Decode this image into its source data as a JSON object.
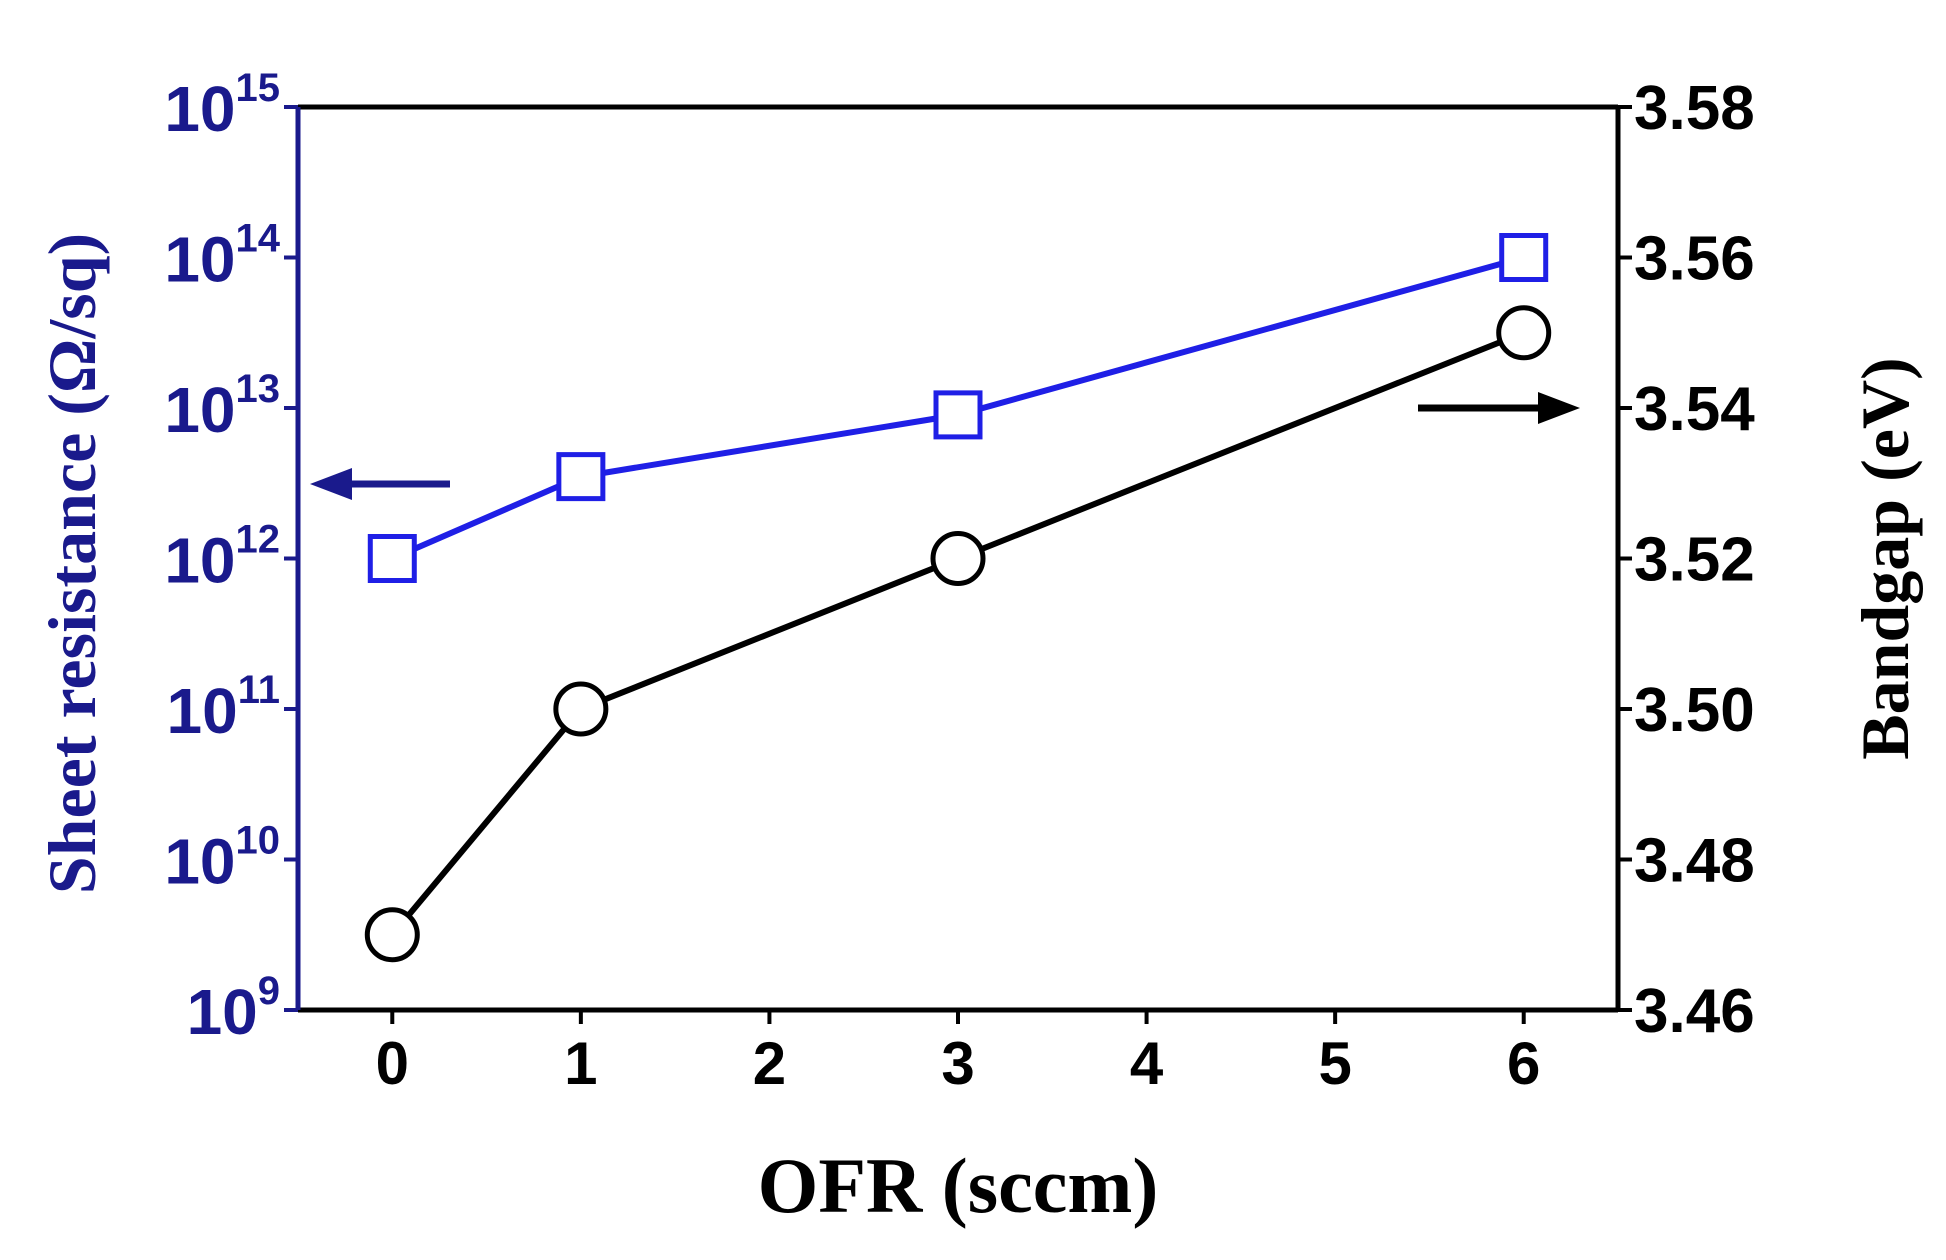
{
  "chart_data": {
    "type": "line",
    "xlabel": "OFR (sccm)",
    "x_ticks": [
      "0",
      "1",
      "2",
      "3",
      "4",
      "5",
      "6"
    ],
    "xlim": [
      -0.5,
      6.5
    ],
    "y_left": {
      "label": "Sheet resistance (Ω/sq)",
      "scale": "log",
      "ylim": [
        1000000000.0,
        1000000000000000.0
      ],
      "tick_base": "10",
      "tick_exponents": [
        "9",
        "10",
        "11",
        "12",
        "13",
        "14",
        "15"
      ],
      "color": "#1a1a8c"
    },
    "y_right": {
      "label": "Bandgap  (eV)",
      "ylim": [
        3.46,
        3.58
      ],
      "tick_labels": [
        "3.46",
        "3.48",
        "3.50",
        "3.52",
        "3.54",
        "3.56",
        "3.58"
      ],
      "color": "#000000"
    },
    "series": [
      {
        "axis": "left",
        "marker": "square",
        "color": "#1f1fe6",
        "x": [
          0,
          1,
          3,
          6
        ],
        "values": [
          1000000000000.0,
          3500000000000.0,
          9000000000000.0,
          100000000000000.0
        ]
      },
      {
        "axis": "right",
        "marker": "circle",
        "color": "#000000",
        "x": [
          0,
          1,
          3,
          6
        ],
        "values": [
          3.47,
          3.5,
          3.52,
          3.55
        ]
      }
    ],
    "annotations": [
      {
        "type": "arrow",
        "direction": "left",
        "meaning": "left axis"
      },
      {
        "type": "arrow",
        "direction": "right",
        "meaning": "right axis"
      }
    ]
  }
}
